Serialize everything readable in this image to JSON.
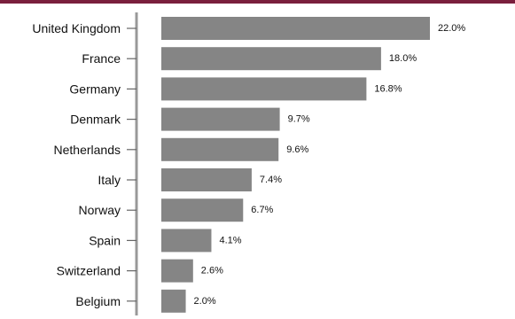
{
  "chart_data": {
    "type": "bar",
    "orientation": "horizontal",
    "categories": [
      "United Kingdom",
      "France",
      "Germany",
      "Denmark",
      "Netherlands",
      "Italy",
      "Norway",
      "Spain",
      "Switzerland",
      "Belgium"
    ],
    "values": [
      22.0,
      18.0,
      16.8,
      9.7,
      9.6,
      7.4,
      6.7,
      4.1,
      2.6,
      2.0
    ],
    "value_labels": [
      "22.0%",
      "18.0%",
      "16.8%",
      "9.7%",
      "9.6%",
      "7.4%",
      "6.7%",
      "4.1%",
      "2.6%",
      "2.0%"
    ],
    "unit": "%",
    "grid": false,
    "legend": "none"
  },
  "colors": {
    "bar": "#858585",
    "top_rule": "#7a1f3d",
    "axis": "#999999",
    "text": "#111111"
  }
}
